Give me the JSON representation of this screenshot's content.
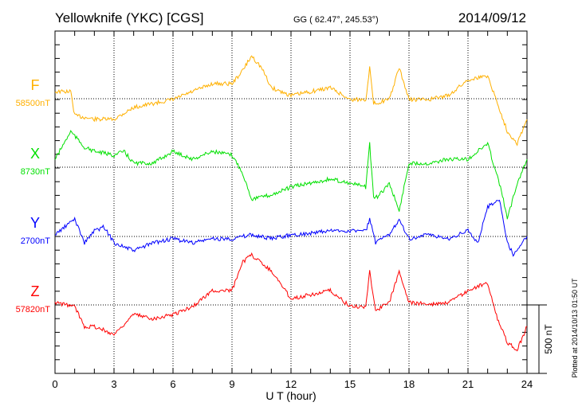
{
  "header": {
    "title": "Yellowknife (YKC)  [CGS]",
    "coords": "GG ( 62.47°, 245.53°)",
    "date": "2014/09/12"
  },
  "footer": {
    "plotted": "Plotted at 2014/10/13 01:50 UT",
    "scale_label": "500 nT"
  },
  "chart_data": {
    "type": "line",
    "title": "Yellowknife (YKC)  [CGS]",
    "xlabel": "U T (hour)",
    "xlim": [
      0,
      24
    ],
    "xticks": [
      "0",
      "3",
      "6",
      "9",
      "12",
      "15",
      "18",
      "21",
      "24"
    ],
    "y_scale_nT_per_tick": 100,
    "scale_bar_nT": 500,
    "grid": true,
    "series": [
      {
        "name": "F",
        "baseline_label": "58500nT",
        "color": "#ffb000",
        "points": [
          [
            0,
            52
          ],
          [
            0.8,
            52
          ],
          [
            1,
            -122
          ],
          [
            2,
            -150
          ],
          [
            3,
            -150
          ],
          [
            4,
            -64
          ],
          [
            5,
            -35
          ],
          [
            6,
            -6
          ],
          [
            7,
            52
          ],
          [
            8,
            110
          ],
          [
            9,
            110
          ],
          [
            9.5,
            197
          ],
          [
            10,
            313
          ],
          [
            10.5,
            226
          ],
          [
            11,
            81
          ],
          [
            12,
            23
          ],
          [
            13,
            52
          ],
          [
            14,
            81
          ],
          [
            15,
            -6
          ],
          [
            15.8,
            -6
          ],
          [
            16,
            226
          ],
          [
            16.2,
            -35
          ],
          [
            17,
            -6
          ],
          [
            17.5,
            226
          ],
          [
            18,
            -6
          ],
          [
            19,
            -6
          ],
          [
            20,
            23
          ],
          [
            21,
            139
          ],
          [
            22,
            168
          ],
          [
            22.5,
            -35
          ],
          [
            23,
            -238
          ],
          [
            23.5,
            -325
          ],
          [
            24,
            -151
          ]
        ]
      },
      {
        "name": "X",
        "baseline_label": "8730nT",
        "color": "#00e000",
        "points": [
          [
            0,
            58
          ],
          [
            0.8,
            261
          ],
          [
            1.5,
            145
          ],
          [
            2,
            116
          ],
          [
            3,
            87
          ],
          [
            3.5,
            116
          ],
          [
            4,
            29
          ],
          [
            5,
            29
          ],
          [
            6,
            116
          ],
          [
            7,
            58
          ],
          [
            8,
            116
          ],
          [
            9,
            87
          ],
          [
            9.5,
            -29
          ],
          [
            10,
            -232
          ],
          [
            11,
            -203
          ],
          [
            12,
            -145
          ],
          [
            13,
            -116
          ],
          [
            14,
            -87
          ],
          [
            15,
            -116
          ],
          [
            15.8,
            -145
          ],
          [
            16,
            174
          ],
          [
            16.2,
            -232
          ],
          [
            16.5,
            -203
          ],
          [
            17,
            -116
          ],
          [
            17.5,
            -319
          ],
          [
            18,
            29
          ],
          [
            19,
            29
          ],
          [
            20,
            58
          ],
          [
            21,
            58
          ],
          [
            22,
            174
          ],
          [
            22.7,
            -174
          ],
          [
            23,
            -377
          ],
          [
            23.5,
            -116
          ],
          [
            24,
            58
          ]
        ]
      },
      {
        "name": "Y",
        "baseline_label": "2700nT",
        "color": "#0000ff",
        "points": [
          [
            0,
            12
          ],
          [
            1,
            128
          ],
          [
            1.5,
            -46
          ],
          [
            2,
            41
          ],
          [
            2.5,
            70
          ],
          [
            3,
            -46
          ],
          [
            4,
            -104
          ],
          [
            5,
            -46
          ],
          [
            6,
            -17
          ],
          [
            7,
            -46
          ],
          [
            8,
            -17
          ],
          [
            9,
            -17
          ],
          [
            10,
            12
          ],
          [
            11,
            -17
          ],
          [
            12,
            12
          ],
          [
            13,
            23
          ],
          [
            14,
            41
          ],
          [
            15,
            41
          ],
          [
            15.8,
            41
          ],
          [
            16,
            128
          ],
          [
            16.3,
            -46
          ],
          [
            17,
            12
          ],
          [
            17.5,
            128
          ],
          [
            18,
            -17
          ],
          [
            19,
            12
          ],
          [
            20,
            -17
          ],
          [
            21,
            41
          ],
          [
            21.5,
            -46
          ],
          [
            22,
            215
          ],
          [
            22.6,
            273
          ],
          [
            23,
            -46
          ],
          [
            23.3,
            -133
          ],
          [
            24,
            0
          ]
        ]
      },
      {
        "name": "Z",
        "baseline_label": "57820nT",
        "color": "#ff0000",
        "points": [
          [
            0,
            17
          ],
          [
            1,
            -12
          ],
          [
            1.5,
            -157
          ],
          [
            2,
            -157
          ],
          [
            3,
            -215
          ],
          [
            4,
            -70
          ],
          [
            5,
            -99
          ],
          [
            6,
            -70
          ],
          [
            7,
            -12
          ],
          [
            8,
            104
          ],
          [
            9,
            104
          ],
          [
            9.5,
            307
          ],
          [
            10,
            365
          ],
          [
            11,
            249
          ],
          [
            12,
            46
          ],
          [
            13,
            75
          ],
          [
            14,
            104
          ],
          [
            15,
            -12
          ],
          [
            15.8,
            -12
          ],
          [
            16,
            249
          ],
          [
            16.3,
            -41
          ],
          [
            17,
            17
          ],
          [
            17.5,
            249
          ],
          [
            18,
            17
          ],
          [
            19,
            6
          ],
          [
            20,
            17
          ],
          [
            21,
            104
          ],
          [
            22,
            162
          ],
          [
            22.5,
            -99
          ],
          [
            23,
            -273
          ],
          [
            23.5,
            -331
          ],
          [
            24,
            -157
          ]
        ]
      }
    ]
  }
}
